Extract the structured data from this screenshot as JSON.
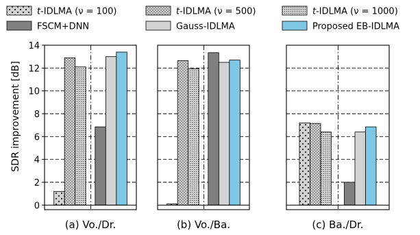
{
  "chart_data": {
    "type": "bar",
    "ylabel": "SDR improvement [dB]",
    "ylim": [
      -0.4,
      14
    ],
    "yticks": [
      0,
      2,
      4,
      6,
      8,
      10,
      12,
      14
    ],
    "grid": "horizontal dashed",
    "legend": "top, 3 columns",
    "series": [
      {
        "name_prefix": "t",
        "name_suffix": "-IDLMA (ν = 100)",
        "color": "#d3d3d3",
        "pattern": "sparse-dots"
      },
      {
        "name_prefix": "t",
        "name_suffix": "-IDLMA (ν = 500)",
        "color": "#d3d3d3",
        "pattern": "medium-dots"
      },
      {
        "name_prefix": "t",
        "name_suffix": "-IDLMA (ν = 1000)",
        "color": "#d3d3d3",
        "pattern": "dense-dots"
      },
      {
        "name": "FSCM+DNN",
        "color": "#808080",
        "pattern": "none"
      },
      {
        "name": "Gauss-IDLMA",
        "color": "#d3d3d3",
        "pattern": "none"
      },
      {
        "name": "Proposed EB-IDLMA",
        "color": "#7ec8e6",
        "pattern": "none"
      }
    ],
    "panels": [
      {
        "label": "(a) Vo./Dr.",
        "values": [
          1.2,
          12.9,
          12.1,
          6.85,
          13.0,
          13.4
        ]
      },
      {
        "label": "(b) Vo./Ba.",
        "values": [
          0.1,
          12.65,
          11.95,
          13.35,
          12.5,
          12.7
        ]
      },
      {
        "label": "(c) Ba./Dr.",
        "values": [
          7.2,
          7.15,
          6.4,
          2.0,
          6.4,
          6.85
        ]
      }
    ]
  }
}
